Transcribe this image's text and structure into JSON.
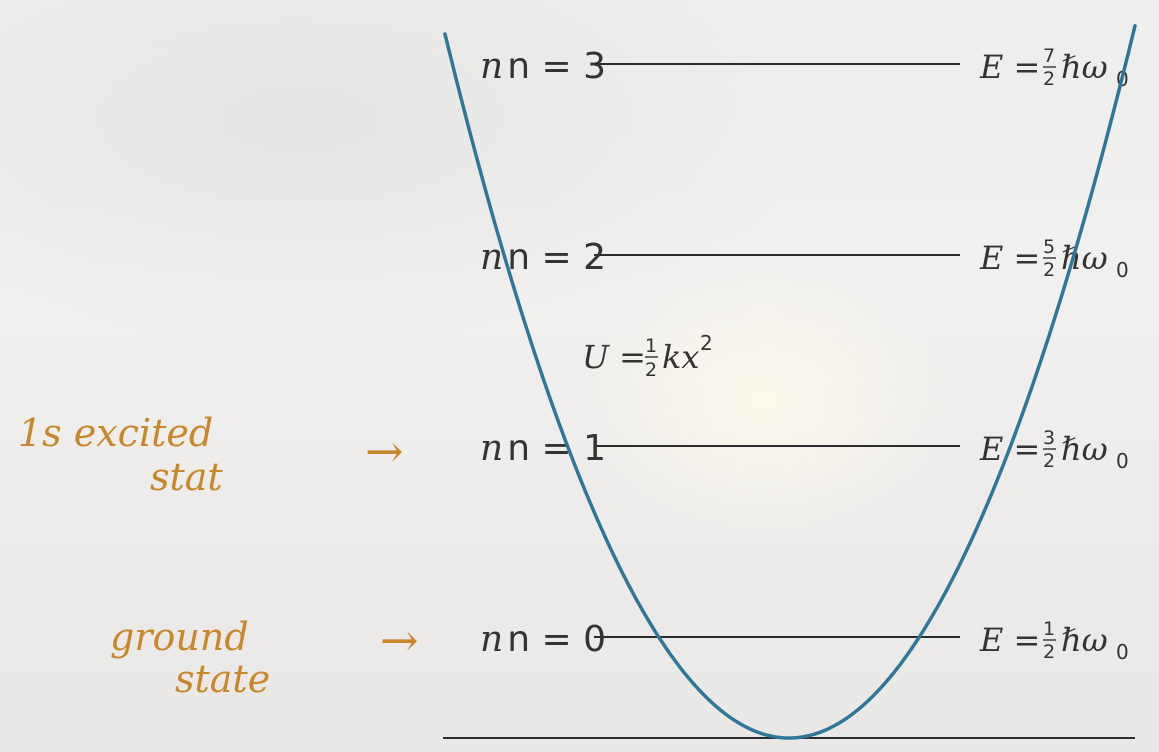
{
  "levels": [
    {
      "n": "3",
      "energy_num": "7",
      "energy_den": "2"
    },
    {
      "n": "2",
      "energy_num": "5",
      "energy_den": "2"
    },
    {
      "n": "1",
      "energy_num": "3",
      "energy_den": "2"
    },
    {
      "n": "0",
      "energy_num": "1",
      "energy_den": "2"
    }
  ],
  "level_prefix": "n = ",
  "energy_prefix": "E =",
  "energy_suffix": "ℏω",
  "energy_subscript": "0",
  "potential": {
    "prefix": "U =",
    "frac_num": "1",
    "frac_den": "2",
    "body": "kx",
    "exponent": "2"
  },
  "annotations": {
    "first_excited_line1": "1s excited",
    "first_excited_line2": "stat",
    "ground_line1": "ground",
    "ground_line2": "state",
    "arrow": "→"
  },
  "colors": {
    "parabola": "#2e7799",
    "level_line": "#2b2b2b",
    "handwriting": "#c8872a"
  }
}
